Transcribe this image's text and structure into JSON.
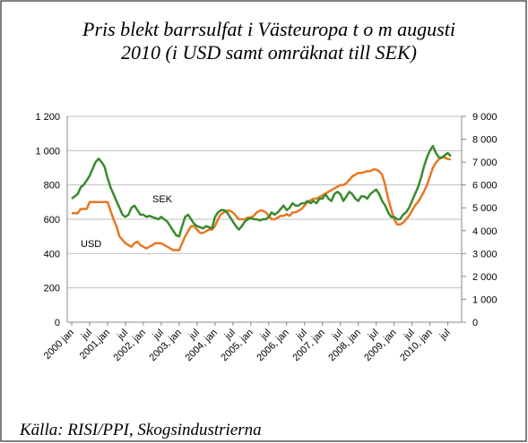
{
  "chart_data": {
    "type": "line",
    "title": "Pris blekt barrsulfat i Västeuropa t o m augusti 2010 (i USD samt omräknat till SEK)",
    "source": "Källa: RISI/PPI, Skogsindustrierna",
    "annotations": [
      "SEK",
      "USD"
    ],
    "categories": [
      "2000 jan",
      null,
      null,
      null,
      null,
      null,
      "jul",
      null,
      null,
      null,
      null,
      null,
      "2001,jan",
      null,
      null,
      null,
      null,
      null,
      "jul",
      null,
      null,
      null,
      null,
      null,
      "2002, jan",
      null,
      null,
      null,
      null,
      null,
      "jul",
      null,
      null,
      null,
      null,
      null,
      "2003, jan",
      null,
      null,
      null,
      null,
      null,
      "jul",
      null,
      null,
      null,
      null,
      null,
      "2004, jan",
      null,
      null,
      null,
      null,
      null,
      "jul",
      null,
      null,
      null,
      null,
      null,
      "2005, jan",
      null,
      null,
      null,
      null,
      null,
      "jul",
      null,
      null,
      null,
      null,
      null,
      "2006, jan",
      null,
      null,
      null,
      null,
      null,
      "jul",
      null,
      null,
      null,
      null,
      null,
      "2007, jan",
      null,
      null,
      null,
      null,
      null,
      "jul",
      null,
      null,
      null,
      null,
      null,
      "2008, jan",
      null,
      null,
      null,
      null,
      null,
      "jul",
      null,
      null,
      null,
      null,
      null,
      "2009, jan",
      null,
      null,
      null,
      null,
      null,
      "jul",
      null,
      null,
      null,
      null,
      null,
      "2010, jan",
      null,
      null,
      null,
      null,
      null,
      "jul",
      null
    ],
    "series": [
      {
        "name": "USD",
        "color": "#e87722",
        "axis": "y",
        "values": [
          635,
          635,
          635,
          660,
          660,
          660,
          700,
          700,
          700,
          700,
          700,
          700,
          700,
          650,
          600,
          560,
          500,
          480,
          460,
          450,
          440,
          460,
          470,
          450,
          440,
          430,
          440,
          450,
          460,
          460,
          460,
          450,
          440,
          430,
          420,
          420,
          420,
          460,
          500,
          530,
          560,
          560,
          540,
          520,
          520,
          530,
          540,
          540,
          560,
          600,
          630,
          640,
          650,
          650,
          640,
          620,
          600,
          600,
          600,
          610,
          610,
          620,
          640,
          650,
          650,
          640,
          620,
          600,
          600,
          610,
          620,
          620,
          630,
          620,
          640,
          640,
          650,
          660,
          680,
          700,
          710,
          720,
          720,
          730,
          740,
          750,
          760,
          770,
          780,
          790,
          800,
          800,
          810,
          830,
          850,
          860,
          870,
          870,
          875,
          880,
          880,
          890,
          890,
          880,
          860,
          800,
          720,
          660,
          600,
          570,
          570,
          580,
          600,
          620,
          650,
          680,
          700,
          730,
          760,
          800,
          850,
          900,
          930,
          950,
          960,
          960,
          950,
          950
        ]
      },
      {
        "name": "SEK",
        "color": "#3a8a2e",
        "axis": "y2",
        "values": [
          5400,
          5500,
          5600,
          5900,
          6000,
          6200,
          6400,
          6700,
          7000,
          7150,
          7000,
          6800,
          6300,
          5900,
          5600,
          5300,
          5000,
          4700,
          4600,
          4700,
          5000,
          5100,
          4900,
          4700,
          4700,
          4600,
          4650,
          4600,
          4550,
          4500,
          4600,
          4500,
          4400,
          4200,
          4000,
          3800,
          3750,
          4200,
          4600,
          4700,
          4500,
          4300,
          4200,
          4150,
          4100,
          4200,
          4150,
          4100,
          4600,
          4800,
          4900,
          4900,
          4800,
          4600,
          4400,
          4200,
          4050,
          4200,
          4400,
          4500,
          4550,
          4500,
          4500,
          4450,
          4500,
          4500,
          4600,
          4800,
          4700,
          4800,
          4950,
          5100,
          4900,
          5000,
          5200,
          5100,
          5100,
          5200,
          5200,
          5300,
          5200,
          5300,
          5200,
          5400,
          5400,
          5600,
          5400,
          5300,
          5600,
          5700,
          5600,
          5300,
          5500,
          5700,
          5600,
          5400,
          5300,
          5500,
          5500,
          5400,
          5600,
          5700,
          5800,
          5600,
          5300,
          5100,
          4800,
          4600,
          4600,
          4500,
          4500,
          4700,
          4800,
          5000,
          5300,
          5600,
          5900,
          6300,
          6800,
          7200,
          7500,
          7700,
          7400,
          7200,
          7200,
          7300,
          7400,
          7250
        ]
      }
    ],
    "ylim": [
      0,
      1200
    ],
    "yticks": [
      0,
      200,
      400,
      600,
      800,
      {
        "value": 1000,
        "label": "1 000"
      },
      {
        "value": 1200,
        "label": "1 200"
      }
    ],
    "y2lim": [
      0,
      9000
    ],
    "y2ticks": [
      0,
      {
        "value": 1000,
        "label": "1 000"
      },
      {
        "value": 2000,
        "label": "2 000"
      },
      {
        "value": 3000,
        "label": "3 000"
      },
      {
        "value": 4000,
        "label": "4 000"
      },
      {
        "value": 5000,
        "label": "5 000"
      },
      {
        "value": 6000,
        "label": "6 000"
      },
      {
        "value": 7000,
        "label": "7 000"
      },
      {
        "value": 8000,
        "label": "8 000"
      },
      {
        "value": 9000,
        "label": "9 000"
      }
    ],
    "grid": true
  }
}
